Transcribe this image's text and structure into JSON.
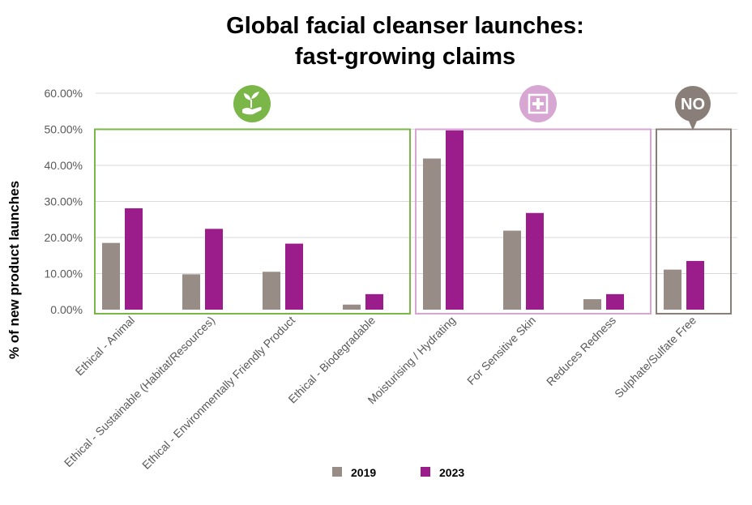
{
  "chart_data": {
    "type": "bar",
    "title_line1": "Global facial cleanser launches:",
    "title_line2": "fast-growing claims",
    "xlabel": "",
    "ylabel": "% of new product launches",
    "ylim": [
      0,
      0.6
    ],
    "yticks": [
      "0.00%",
      "10.00%",
      "20.00%",
      "30.00%",
      "40.00%",
      "50.00%",
      "60.00%"
    ],
    "categories": [
      "Ethical - Animal",
      "Ethical - Sustainable (Habitat/Resources)",
      "Ethical - Environmentally Friendly Product",
      "Ethical - Biodegradable",
      "Moisturising / Hydrating",
      "For Sensitive Skin",
      "Reduces Redness",
      "Sulphate/Sulfate Free"
    ],
    "series": [
      {
        "name": "2019",
        "color": "#978c86",
        "values": [
          0.185,
          0.098,
          0.105,
          0.014,
          0.419,
          0.219,
          0.029,
          0.111
        ]
      },
      {
        "name": "2023",
        "color": "#9b1c8b",
        "values": [
          0.281,
          0.224,
          0.183,
          0.043,
          0.497,
          0.268,
          0.043,
          0.135
        ]
      }
    ],
    "groups": [
      {
        "name": "ethical",
        "color": "#7ab648",
        "icon": "plant-in-hand-icon",
        "from": 0,
        "to": 3
      },
      {
        "name": "skin-care",
        "color": "#d7a6d3",
        "icon": "plus-box-icon",
        "from": 4,
        "to": 6
      },
      {
        "name": "free-from",
        "color": "#8a7f78",
        "icon": "no-speech-bubble-icon",
        "icon_text": "NO",
        "from": 7,
        "to": 7
      }
    ],
    "legend_position": "bottom",
    "grid": true
  }
}
